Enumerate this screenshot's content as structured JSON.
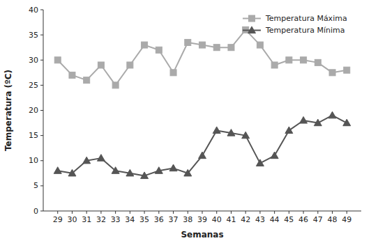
{
  "chart_data": {
    "type": "line",
    "xlabel": "Semanas",
    "ylabel": "Temperatura (ºC)",
    "x": [
      29,
      30,
      31,
      32,
      33,
      34,
      35,
      36,
      37,
      38,
      39,
      40,
      41,
      42,
      43,
      44,
      45,
      46,
      47,
      48,
      49
    ],
    "series": [
      {
        "name": "Temperatura Máxima",
        "color": "#aaaaaa",
        "marker": "square",
        "values": [
          30,
          27,
          26,
          29,
          25,
          29,
          33,
          32,
          27.5,
          33.5,
          33,
          32.5,
          32.5,
          36,
          33,
          29,
          30,
          30,
          29.5,
          27.5,
          28
        ]
      },
      {
        "name": "Temperatura Mínima",
        "color": "#555555",
        "marker": "triangle",
        "values": [
          8,
          7.5,
          10,
          10.5,
          8,
          7.5,
          7,
          8,
          8.5,
          7.5,
          11,
          16,
          15.5,
          15,
          9.5,
          11,
          16,
          18,
          17.5,
          19,
          17.5
        ]
      }
    ],
    "xlim": [
      28,
      50
    ],
    "xticks": [
      29,
      30,
      31,
      32,
      33,
      34,
      35,
      36,
      37,
      38,
      39,
      40,
      41,
      42,
      43,
      44,
      45,
      46,
      47,
      48,
      49
    ],
    "ylim": [
      0,
      40
    ],
    "yticks": [
      0,
      5,
      10,
      15,
      20,
      25,
      30,
      35,
      40
    ],
    "grid": false,
    "legend": "upper right"
  }
}
